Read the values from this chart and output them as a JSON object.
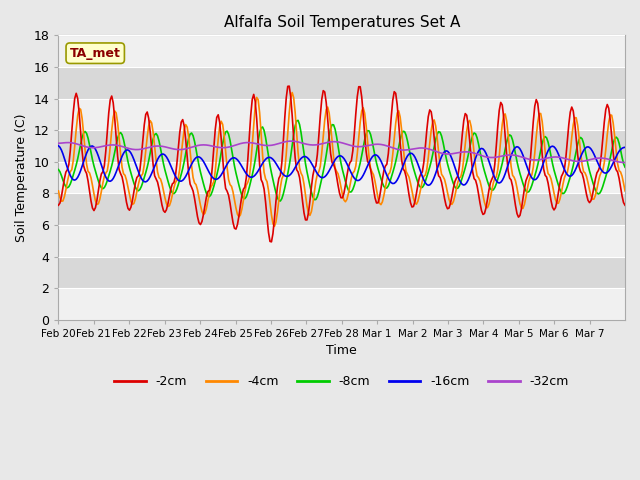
{
  "title": "Alfalfa Soil Temperatures Set A",
  "xlabel": "Time",
  "ylabel": "Soil Temperature (C)",
  "ylim": [
    0,
    18
  ],
  "yticks": [
    0,
    2,
    4,
    6,
    8,
    10,
    12,
    14,
    16,
    18
  ],
  "figure_bg": "#e8e8e8",
  "plot_bg_light": "#f0f0f0",
  "plot_bg_dark": "#d8d8d8",
  "legend_label": "TA_met",
  "line_colors": {
    "-2cm": "#dd0000",
    "-4cm": "#ff8800",
    "-8cm": "#00cc00",
    "-16cm": "#0000ee",
    "-32cm": "#aa44cc"
  },
  "x_labels": [
    "Feb 20",
    "Feb 21",
    "Feb 22",
    "Feb 23",
    "Feb 24",
    "Feb 25",
    "Feb 26",
    "Feb 27",
    "Feb 28",
    "Mar 1",
    "Mar 2",
    "Mar 3",
    "Mar 4",
    "Mar 5",
    "Mar 6",
    "Mar 7"
  ],
  "n_days": 16,
  "samples_per_day": 24,
  "legend_entries": [
    "-2cm",
    "-4cm",
    "-8cm",
    "-16cm",
    "-32cm"
  ]
}
